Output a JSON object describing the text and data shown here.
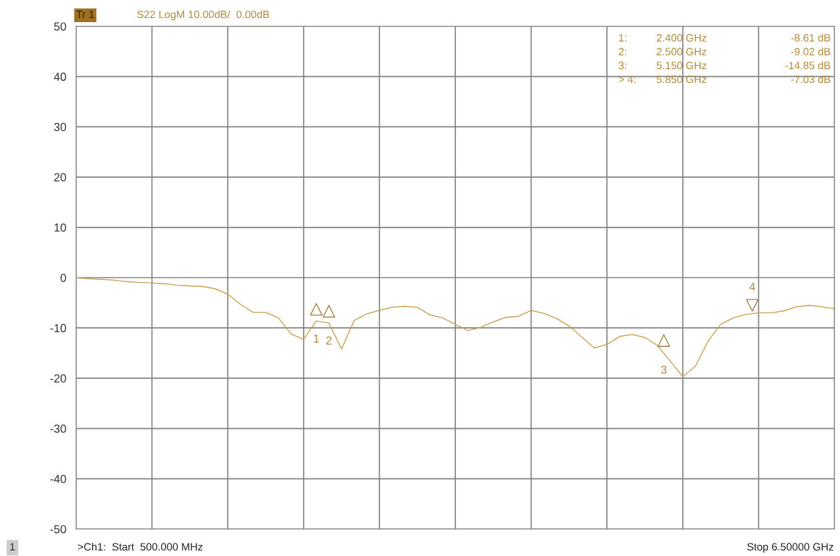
{
  "chart_data": {
    "type": "line",
    "title": "S22 LogM 10.00dB/  0.00dB",
    "categories": [
      null,
      null,
      null,
      null,
      null,
      null,
      null,
      null,
      null,
      null,
      null,
      null,
      null,
      null,
      null,
      null,
      null,
      null,
      null,
      null,
      null,
      null,
      null,
      null,
      null,
      null,
      null,
      null,
      null,
      null,
      null,
      null,
      null,
      null,
      null,
      null,
      null,
      null,
      null,
      null,
      null,
      null,
      null,
      null,
      null,
      null,
      null,
      null,
      null,
      null,
      null,
      null,
      null,
      null,
      null,
      null,
      null,
      null,
      null,
      null,
      null
    ],
    "ylim": [
      -50,
      50
    ],
    "yticks": [
      -50,
      -40,
      -30,
      -20,
      -10,
      0,
      10,
      20,
      30,
      40,
      50
    ],
    "tick_labels": "y",
    "grid": true,
    "legend": false,
    "series": [
      {
        "color": "#c8a050",
        "marker": "none",
        "line_style": "solid",
        "values": [
          0,
          -0.2,
          -0.35,
          -0.5,
          -0.8,
          -0.95,
          -1.05,
          -1.2,
          -1.5,
          -1.65,
          -1.75,
          -2.2,
          -3.3,
          -5.3,
          -6.9,
          -6.9,
          -8.0,
          -11.2,
          -12.3,
          -8.61,
          -9.02,
          -14.2,
          -8.5,
          -7.2,
          -6.5,
          -5.9,
          -5.7,
          -5.9,
          -7.4,
          -8.0,
          -9.3,
          -10.5,
          -9.9,
          -8.8,
          -7.9,
          -7.7,
          -6.5,
          -7.1,
          -8.1,
          -9.6,
          -11.8,
          -14.0,
          -13.3,
          -11.7,
          -11.3,
          -11.9,
          -13.5,
          -16.6,
          -19.7,
          -17.6,
          -12.6,
          -9.3,
          -8.0,
          -7.3,
          -7.0,
          -7.0,
          -6.6,
          -5.8,
          -5.5,
          -5.8,
          -6.2
        ]
      }
    ],
    "annotations": [
      "1:",
      "2.400 GHz",
      "-8.61 dB",
      "2:",
      "2.500 GHz",
      "-9.02 dB",
      "3:",
      "5.150 GHz",
      "-14.85 dB",
      "> 4:",
      "5.850 GHz",
      "-7.03 dB",
      "Tr 1",
      "1",
      ">Ch1:  Start  500.000 MHz",
      "Stop 6.50000 GHz",
      "1",
      "2",
      "3",
      "4"
    ]
  }
}
